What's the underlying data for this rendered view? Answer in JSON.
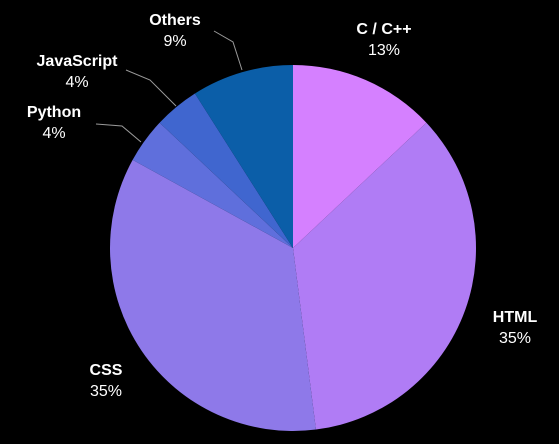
{
  "chart_data": {
    "type": "pie",
    "title": "",
    "slices": [
      {
        "label": "C / C++",
        "percent_label": "13%",
        "value": 13,
        "color": "#d580ff"
      },
      {
        "label": "HTML",
        "percent_label": "35%",
        "value": 35,
        "color": "#b07cf5"
      },
      {
        "label": "CSS",
        "percent_label": "35%",
        "value": 35,
        "color": "#8e79e9"
      },
      {
        "label": "Python",
        "percent_label": "4%",
        "value": 4,
        "color": "#5f6fdc"
      },
      {
        "label": "JavaScript",
        "percent_label": "4%",
        "value": 4,
        "color": "#4066cf"
      },
      {
        "label": "Others",
        "percent_label": "9%",
        "value": 9,
        "color": "#0b5ea8"
      }
    ],
    "start_angle": "12 o'clock",
    "direction": "clockwise",
    "legend": "none",
    "label_color": "#ffffff",
    "background": "#000000"
  }
}
